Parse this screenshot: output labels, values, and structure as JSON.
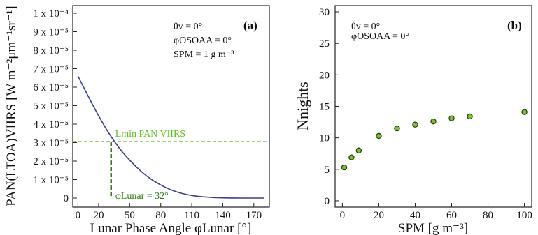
{
  "chart_data": [
    {
      "panel": "(a)",
      "type": "line",
      "xlabel": "Lunar Phase Angle φLunar [°]",
      "ylabel": "PAN(LTOA)VIIRS [W m⁻²μm⁻¹sr⁻¹]",
      "x_ticks": [
        0,
        20,
        50,
        80,
        110,
        140,
        170
      ],
      "y_ticks": [
        "0",
        "1 x 10⁻⁵",
        "2 x 10⁻⁵",
        "3 x 10⁻⁵",
        "4 x 10⁻⁵",
        "5 x 10⁻⁵",
        "6 x 10⁻⁵",
        "7 x 10⁻⁵",
        "8 x 10⁻⁵",
        "9 x 10⁻⁵",
        "1 x 10⁻⁴"
      ],
      "xlim": [
        -5,
        185
      ],
      "ylim": [
        0,
        0.0001
      ],
      "series": [
        {
          "color": "#3b3f8f",
          "x": [
            0,
            10,
            20,
            30,
            40,
            50,
            60,
            70,
            80,
            90,
            100,
            110,
            120,
            130,
            140,
            150,
            160,
            170,
            180
          ],
          "y": [
            6.6e-05,
            5.5e-05,
            4.45e-05,
            3.5e-05,
            2.7e-05,
            2.05e-05,
            1.5e-05,
            1.05e-05,
            7.1e-06,
            4.4e-06,
            2.6e-06,
            1.4e-06,
            7e-07,
            3e-07,
            1e-07,
            4e-08,
            1e-08,
            0,
            0
          ]
        }
      ],
      "threshold": {
        "label": "Lmin PAN VIIRS",
        "value": 3.05e-05,
        "color": "#5cc21a"
      },
      "marker_line": {
        "label": "φLunar = 32°",
        "x": 32,
        "color": "#2e6b12"
      },
      "info_lines": [
        "θv = 0°",
        "φOSOAA = 0°",
        "SPM = 1 g m⁻³"
      ]
    },
    {
      "panel": "(b)",
      "type": "scatter",
      "xlabel": "SPM  [g m⁻³]",
      "ylabel": "Nnights",
      "x_ticks": [
        0,
        20,
        40,
        60,
        80,
        100
      ],
      "y_ticks": [
        0,
        5,
        10,
        15,
        20,
        25,
        30
      ],
      "xlim": [
        -4,
        104
      ],
      "ylim": [
        -1,
        31
      ],
      "series": [
        {
          "color": "#7bbf2a",
          "x": [
            1,
            5,
            9,
            20,
            30,
            40,
            50,
            60,
            70,
            100
          ],
          "y": [
            5.3,
            6.9,
            8.0,
            10.3,
            11.5,
            12.1,
            12.6,
            13.1,
            13.4,
            14.1
          ]
        }
      ],
      "info_lines": [
        "θv = 0°",
        "φOSOAA = 0°"
      ]
    }
  ]
}
